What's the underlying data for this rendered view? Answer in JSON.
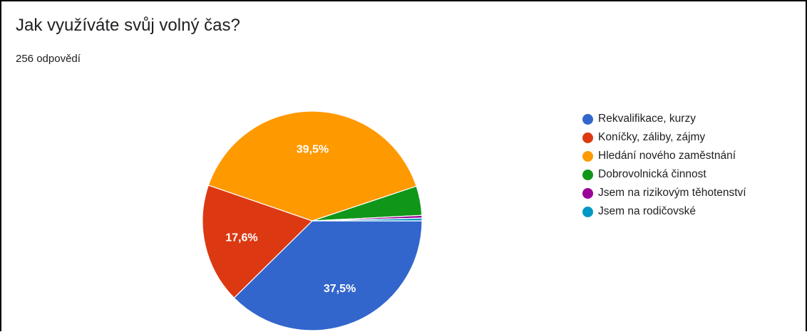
{
  "card": {
    "title": "Jak využíváte svůj volný čas?",
    "response_count": "256 odpovědí"
  },
  "chart_data": {
    "type": "pie",
    "title": "Jak využíváte svůj volný čas?",
    "subtitle": "256 odpovědí",
    "legend_position": "right",
    "slices": [
      {
        "name": "Rekvalifikace, kurzy",
        "value": 37.5,
        "label": "37,5%",
        "color": "#3366cc"
      },
      {
        "name": "Koníčky, záliby, zájmy",
        "value": 17.6,
        "label": "17,6%",
        "color": "#dc3912"
      },
      {
        "name": "Hledání nového zaměstnání",
        "value": 39.5,
        "label": "39,5%",
        "color": "#ff9900"
      },
      {
        "name": "Dobrovolnická činnost",
        "value": 4.3,
        "label": "",
        "color": "#109618"
      },
      {
        "name": "Jsem na rizikovým těhotenství",
        "value": 0.4,
        "label": "",
        "color": "#990099"
      },
      {
        "name": "Jsem na rodičovské",
        "value": 0.4,
        "label": "",
        "color": "#0099c6"
      }
    ]
  }
}
